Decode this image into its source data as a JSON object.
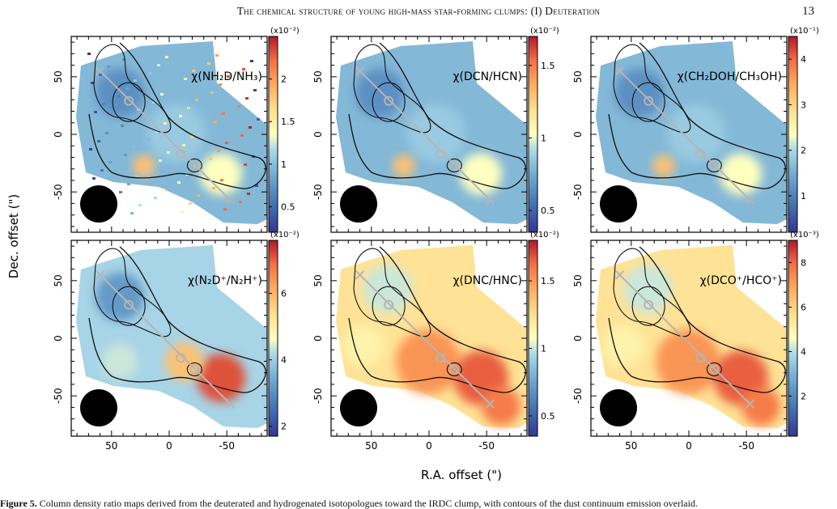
{
  "header": {
    "running_title": "The chemical structure of young high-mass star-forming clumps: (I) Deuteration",
    "page_number": "13"
  },
  "figure": {
    "x_axis_label": "R.A. offset (\")",
    "y_axis_label": "Dec. offset (\")",
    "x_ticks": [
      "50",
      "0",
      "-50"
    ],
    "y_ticks": [
      "50",
      "0",
      "-50"
    ],
    "panels": [
      {
        "label": "χ(NH₂D/NH₃)",
        "scale": "(x10⁻²)",
        "cbar_ticks": [
          "2",
          "1.5",
          "1",
          "0.5"
        ],
        "cbar_ticks_values": [
          2,
          1.5,
          1,
          0.5
        ],
        "cbar_min": 0.2,
        "cbar_max": 2.5,
        "map": "speckle"
      },
      {
        "label": "χ(DCN/HCN)",
        "scale": "(x10⁻²)",
        "cbar_ticks": [
          "1.5",
          "1",
          "0.5"
        ],
        "cbar_ticks_values": [
          1.5,
          1,
          0.5
        ],
        "cbar_min": 0.35,
        "cbar_max": 1.7,
        "map": "smooth-blue"
      },
      {
        "label": "χ(CH₂DOH/CH₃OH)",
        "scale": "(x10⁻¹)",
        "cbar_ticks": [
          "4",
          "3",
          "2",
          "1"
        ],
        "cbar_ticks_values": [
          4,
          3,
          2,
          1
        ],
        "cbar_min": 0.2,
        "cbar_max": 4.5,
        "map": "smooth-blue"
      },
      {
        "label": "χ(N₂D⁺/N₂H⁺)",
        "scale": "(x10⁻²)",
        "cbar_ticks": [
          "6",
          "4",
          "2"
        ],
        "cbar_ticks_values": [
          6,
          4,
          2
        ],
        "cbar_min": 1.7,
        "cbar_max": 7.6,
        "map": "mixed"
      },
      {
        "label": "χ(DNC/HNC)",
        "scale": "(x10⁻²)",
        "cbar_ticks": [
          "1.5",
          "1",
          "0.5"
        ],
        "cbar_ticks_values": [
          1.5,
          1,
          0.5
        ],
        "cbar_min": 0.35,
        "cbar_max": 1.8,
        "map": "warm"
      },
      {
        "label": "χ(DCO⁺/HCO⁺)",
        "scale": "(x10⁻³)",
        "cbar_ticks": [
          "8",
          "6",
          "4",
          "2"
        ],
        "cbar_ticks_values": [
          8,
          6,
          4,
          2
        ],
        "cbar_min": 0.2,
        "cbar_max": 9,
        "map": "warm"
      }
    ]
  },
  "caption": {
    "label": "Figure 5.",
    "text": " Column density ratio maps derived from the deuterated and hydrogenated isotopologues toward the IRDC clump, with contours of the dust continuum emission overlaid."
  },
  "colors": {
    "contour": "#111111",
    "axis_track": "#b5b5b5",
    "beam": "#000000"
  }
}
